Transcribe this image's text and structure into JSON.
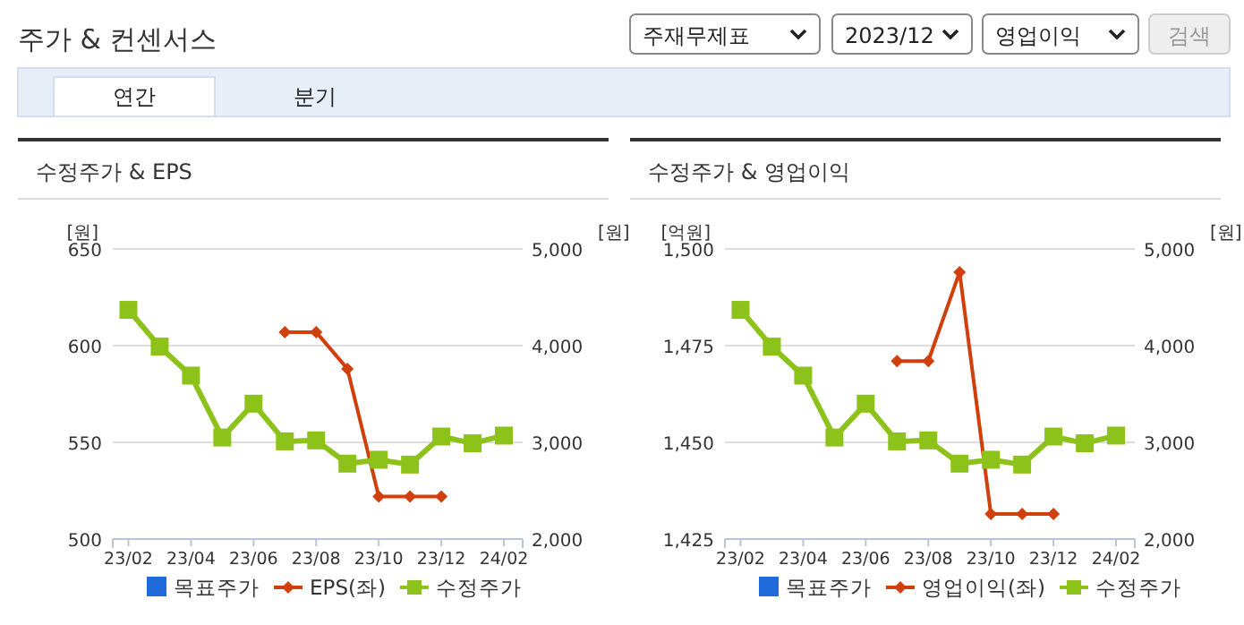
{
  "chart_data": [
    {
      "type": "other",
      "title": "주가 & 컨센서스",
      "annotations": [
        "주재무제표",
        "2023/12",
        "영업이익",
        "검색",
        "연간",
        "분기"
      ]
    },
    {
      "type": "line",
      "title": "수정주가 & EPS",
      "ylabel": "[원]",
      "y2label": "[원]",
      "categories": [
        "23/02",
        null,
        "23/04",
        null,
        "23/06",
        null,
        "23/08",
        null,
        "23/10",
        null,
        "23/12",
        null,
        "24/02"
      ],
      "ylim": [
        500,
        650
      ],
      "yticks": [
        500,
        550,
        600,
        650
      ],
      "y2lim": [
        2000,
        5000
      ],
      "y2ticks": [
        {
          "value": 2000,
          "label": "2,000"
        },
        {
          "value": 3000,
          "label": "3,000"
        },
        {
          "value": 4000,
          "label": "4,000"
        },
        {
          "value": 5000,
          "label": "5,000"
        }
      ],
      "grid": "y",
      "legend": "bottom",
      "series": [
        {
          "name": "목표주가",
          "color": "#1f6bdc",
          "marker": "square",
          "values": [
            null,
            null,
            null,
            null,
            null,
            null,
            null,
            null,
            null,
            null,
            null,
            null,
            null
          ]
        },
        {
          "name": "EPS(좌)",
          "color": "#d13f0c",
          "marker": "diamond",
          "values": [
            null,
            null,
            null,
            null,
            null,
            607,
            607,
            588,
            522,
            522,
            522,
            null,
            null
          ]
        },
        {
          "name": "수정주가",
          "color": "#8cc21a",
          "marker": "square",
          "axis": "y2",
          "values": [
            4370,
            3990,
            3690,
            3050,
            3400,
            3010,
            3020,
            2780,
            2820,
            2770,
            3060,
            2990,
            3070
          ]
        }
      ]
    },
    {
      "type": "line",
      "title": "수정주가 & 영업이익",
      "ylabel": "[억원]",
      "y2label": "[원]",
      "categories": [
        "23/02",
        null,
        "23/04",
        null,
        "23/06",
        null,
        "23/08",
        null,
        "23/10",
        null,
        "23/12",
        null,
        "24/02"
      ],
      "ylim": [
        1425,
        1500
      ],
      "yticks": [
        {
          "value": 1425,
          "label": "1,425"
        },
        {
          "value": 1450,
          "label": "1,450"
        },
        {
          "value": 1475,
          "label": "1,475"
        },
        {
          "value": 1500,
          "label": "1,500"
        }
      ],
      "y2lim": [
        2000,
        5000
      ],
      "y2ticks": [
        {
          "value": 2000,
          "label": "2,000"
        },
        {
          "value": 3000,
          "label": "3,000"
        },
        {
          "value": 4000,
          "label": "4,000"
        },
        {
          "value": 5000,
          "label": "5,000"
        }
      ],
      "grid": "y",
      "legend": "bottom",
      "series": [
        {
          "name": "목표주가",
          "color": "#1f6bdc",
          "marker": "square",
          "values": [
            null,
            null,
            null,
            null,
            null,
            null,
            null,
            null,
            null,
            null,
            null,
            null,
            null
          ]
        },
        {
          "name": "영업이익(좌)",
          "color": "#d13f0c",
          "marker": "diamond",
          "values": [
            null,
            null,
            null,
            null,
            null,
            1471,
            1471,
            1494,
            1431.5,
            1431.5,
            1431.5,
            null,
            null
          ]
        },
        {
          "name": "수정주가",
          "color": "#8cc21a",
          "marker": "square",
          "axis": "y2",
          "values": [
            4370,
            3990,
            3690,
            3050,
            3400,
            3010,
            3020,
            2780,
            2820,
            2770,
            3060,
            2990,
            3070
          ]
        }
      ]
    }
  ]
}
